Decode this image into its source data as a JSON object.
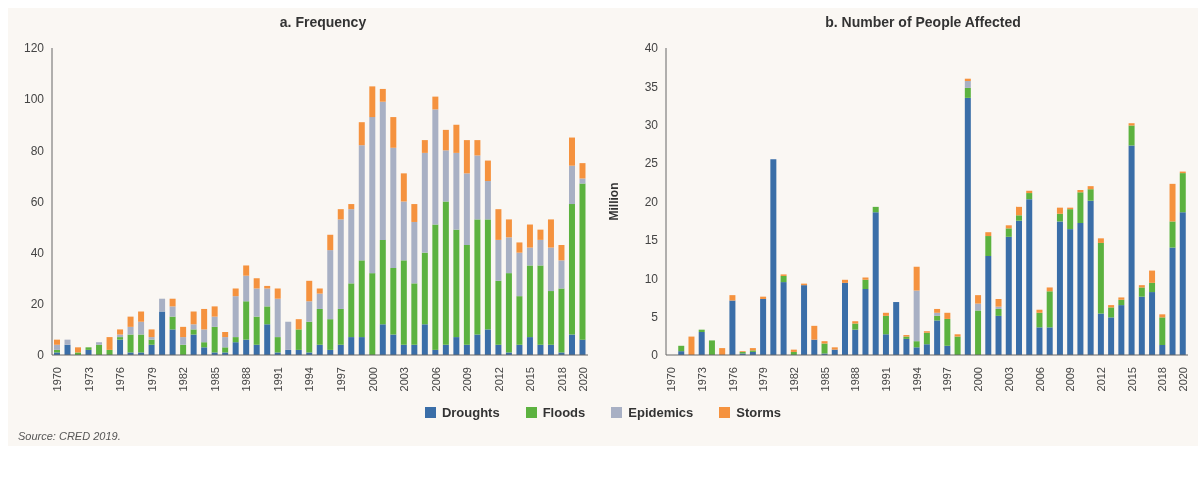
{
  "chart_data": [
    {
      "type": "bar",
      "title": "a. Frequency",
      "stacked": true,
      "legend": "bottom",
      "annotations": [
        "Source: CRED 2019."
      ],
      "categories": [
        "1970",
        null,
        null,
        "1973",
        null,
        null,
        "1976",
        null,
        null,
        "1979",
        null,
        null,
        "1982",
        null,
        null,
        "1985",
        null,
        null,
        "1988",
        null,
        null,
        "1991",
        null,
        null,
        "1994",
        null,
        null,
        "1997",
        null,
        null,
        "2000",
        null,
        null,
        "2003",
        null,
        null,
        "2006",
        null,
        null,
        "2009",
        null,
        null,
        "2012",
        null,
        null,
        "2015",
        null,
        null,
        "2018",
        null,
        "2020"
      ],
      "ylim": [
        0,
        120
      ],
      "yticks": [
        0,
        20,
        40,
        60,
        80,
        100,
        120
      ],
      "series": [
        {
          "name": "Droughts",
          "color": "#3a6ea8",
          "values": [
            1,
            4,
            0,
            2,
            0,
            0,
            6,
            1,
            1,
            4,
            17,
            10,
            0,
            8,
            3,
            1,
            1,
            5,
            6,
            4,
            12,
            1,
            2,
            2,
            1,
            4,
            2,
            4,
            7,
            7,
            0,
            12,
            8,
            4,
            4,
            12,
            2,
            4,
            7,
            4,
            8,
            10,
            4,
            1,
            4,
            7,
            4,
            4,
            1,
            8,
            6
          ]
        },
        {
          "name": "Floods",
          "color": "#5cb23f",
          "values": [
            1,
            0,
            1,
            1,
            4,
            2,
            1,
            7,
            7,
            2,
            0,
            5,
            4,
            2,
            2,
            10,
            2,
            2,
            15,
            11,
            7,
            6,
            0,
            8,
            12,
            14,
            12,
            14,
            21,
            30,
            32,
            33,
            26,
            33,
            24,
            28,
            49,
            56,
            42,
            39,
            45,
            43,
            25,
            31,
            19,
            28,
            31,
            21,
            25,
            51,
            61
          ]
        },
        {
          "name": "Epidemics",
          "color": "#a8b0c4",
          "values": [
            2,
            2,
            0,
            0,
            1,
            0,
            1,
            3,
            5,
            1,
            5,
            4,
            3,
            2,
            5,
            4,
            4,
            16,
            10,
            11,
            7,
            15,
            11,
            0,
            8,
            6,
            27,
            35,
            29,
            45,
            61,
            54,
            47,
            23,
            24,
            39,
            45,
            20,
            30,
            28,
            25,
            15,
            16,
            14,
            17,
            7,
            10,
            17,
            11,
            15,
            2
          ]
        },
        {
          "name": "Storms",
          "color": "#f5923e",
          "values": [
            2,
            0,
            2,
            0,
            0,
            5,
            2,
            4,
            4,
            3,
            0,
            3,
            4,
            5,
            8,
            4,
            2,
            3,
            4,
            4,
            1,
            4,
            0,
            4,
            8,
            2,
            6,
            4,
            2,
            9,
            12,
            5,
            12,
            11,
            7,
            5,
            5,
            8,
            11,
            13,
            6,
            8,
            12,
            7,
            4,
            9,
            4,
            11,
            6,
            11,
            6
          ]
        }
      ]
    },
    {
      "type": "bar",
      "title": "b. Number of People Affected",
      "ylabel": "Million",
      "stacked": true,
      "legend": "bottom",
      "categories": [
        "1970",
        null,
        null,
        "1973",
        null,
        null,
        "1976",
        null,
        null,
        "1979",
        null,
        null,
        "1982",
        null,
        null,
        "1985",
        null,
        null,
        "1988",
        null,
        null,
        "1991",
        null,
        null,
        "1994",
        null,
        null,
        "1997",
        null,
        null,
        "2000",
        null,
        null,
        "2003",
        null,
        null,
        "2006",
        null,
        null,
        "2009",
        null,
        null,
        "2012",
        null,
        null,
        "2015",
        null,
        null,
        "2018",
        null,
        "2020"
      ],
      "ylim": [
        0,
        40
      ],
      "yticks": [
        0,
        5,
        10,
        15,
        20,
        25,
        30,
        35,
        40
      ],
      "series": [
        {
          "name": "Droughts",
          "color": "#3a6ea8",
          "values": [
            0,
            0.5,
            0,
            3.0,
            0,
            0,
            7.1,
            0.2,
            0.4,
            7.3,
            25.5,
            9.5,
            0,
            9.1,
            2.0,
            0.2,
            0.7,
            9.4,
            3.3,
            8.6,
            18.6,
            2.7,
            6.9,
            2.1,
            1.0,
            1.4,
            4.5,
            1.2,
            0,
            33.5,
            0,
            12.9,
            5.1,
            15.4,
            17.5,
            20.3,
            3.6,
            3.6,
            17.4,
            16.4,
            17.2,
            20.1,
            5.4,
            4.9,
            6.5,
            27.3,
            7.6,
            8.2,
            1.3,
            14.0,
            18.6
          ]
        },
        {
          "name": "Floods",
          "color": "#5cb23f",
          "values": [
            0,
            0.7,
            0,
            0.3,
            1.9,
            0,
            0,
            0.2,
            0.2,
            0,
            0,
            0.8,
            0.4,
            0,
            0,
            1.3,
            0,
            0,
            0.8,
            1.2,
            0.7,
            2.4,
            0,
            0.3,
            0.8,
            1.5,
            0.6,
            3.5,
            2.4,
            1.3,
            5.8,
            2.6,
            0.9,
            1.1,
            0.7,
            0.8,
            1.9,
            4.7,
            1.0,
            2.6,
            4.0,
            1.5,
            9.2,
            1.3,
            0.7,
            2.6,
            1.2,
            1.2,
            3.6,
            3.4,
            5.1
          ]
        },
        {
          "name": "Epidemics",
          "color": "#a8b0c4",
          "values": [
            0,
            0,
            0,
            0,
            0,
            0,
            0,
            0,
            0,
            0,
            0,
            0,
            0,
            0,
            0,
            0,
            0,
            0,
            0,
            0,
            0,
            0,
            0,
            0,
            6.6,
            0,
            0.4,
            0,
            0,
            0.9,
            0.9,
            0,
            0.3,
            0,
            0,
            0,
            0,
            0,
            0,
            0,
            0,
            0,
            0,
            0,
            0,
            0,
            0,
            0,
            0,
            0,
            0
          ]
        },
        {
          "name": "Storms",
          "color": "#f5923e",
          "values": [
            0,
            0,
            2.4,
            0,
            0,
            0.9,
            0.7,
            0.1,
            0.3,
            0.3,
            0,
            0.2,
            0.3,
            0.2,
            1.8,
            0.3,
            0.3,
            0.4,
            0.3,
            0.3,
            0,
            0.4,
            0,
            0.2,
            3.1,
            0.2,
            0.5,
            0.8,
            0.3,
            0.3,
            1.1,
            0.5,
            1.0,
            0.4,
            1.1,
            0.3,
            0.4,
            0.5,
            0.8,
            0.2,
            0.3,
            0.4,
            0.6,
            0.3,
            0.3,
            0.3,
            0.3,
            1.6,
            0.4,
            4.9,
            0.2
          ]
        }
      ]
    }
  ]
}
